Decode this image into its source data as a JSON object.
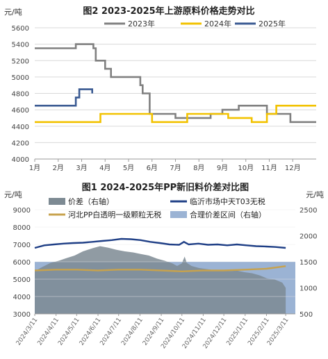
{
  "chart_data": [
    {
      "type": "line",
      "title": "图2 2023-2025年上游原料价格走势对比",
      "ylabel": "元/吨",
      "ylim": [
        4000,
        5600
      ],
      "y_ticks": [
        "4000",
        "4200",
        "4400",
        "4600",
        "4800",
        "5000",
        "5200",
        "5400",
        "5600"
      ],
      "x_ticks": [
        "1月",
        "2月",
        "3月",
        "4月",
        "5月",
        "6月",
        "7月",
        "8月",
        "9月",
        "10月",
        "11月",
        "12月"
      ],
      "xlim": [
        1,
        13
      ],
      "grid": true,
      "legend_position": "top",
      "series": [
        {
          "name": "2023年",
          "color": "#808080",
          "points": [
            [
              1,
              5350
            ],
            [
              2.75,
              5350
            ],
            [
              2.75,
              5400
            ],
            [
              3.5,
              5400
            ],
            [
              3.5,
              5350
            ],
            [
              3.6,
              5350
            ],
            [
              3.6,
              5200
            ],
            [
              4,
              5200
            ],
            [
              4,
              5100
            ],
            [
              4.25,
              5100
            ],
            [
              4.25,
              5000
            ],
            [
              5.5,
              5000
            ],
            [
              5.5,
              4900
            ],
            [
              5.6,
              4900
            ],
            [
              5.6,
              4800
            ],
            [
              5.9,
              4800
            ],
            [
              5.9,
              4550
            ],
            [
              7,
              4550
            ],
            [
              7,
              4500
            ],
            [
              8.5,
              4500
            ],
            [
              8.5,
              4550
            ],
            [
              9,
              4550
            ],
            [
              9,
              4600
            ],
            [
              9.7,
              4600
            ],
            [
              9.7,
              4650
            ],
            [
              10.9,
              4650
            ],
            [
              10.9,
              4550
            ],
            [
              11.9,
              4550
            ],
            [
              11.9,
              4450
            ],
            [
              13,
              4450
            ]
          ]
        },
        {
          "name": "2024年",
          "color": "#f2c200",
          "points": [
            [
              1,
              4450
            ],
            [
              3.8,
              4450
            ],
            [
              3.8,
              4550
            ],
            [
              6,
              4550
            ],
            [
              6,
              4450
            ],
            [
              7.5,
              4450
            ],
            [
              7.5,
              4550
            ],
            [
              9.25,
              4550
            ],
            [
              9.25,
              4500
            ],
            [
              10.25,
              4500
            ],
            [
              10.25,
              4450
            ],
            [
              10.9,
              4450
            ],
            [
              10.9,
              4550
            ],
            [
              11.3,
              4550
            ],
            [
              11.3,
              4650
            ],
            [
              13,
              4650
            ]
          ]
        },
        {
          "name": "2025年",
          "color": "#3a5a92",
          "points": [
            [
              1,
              4650
            ],
            [
              2.75,
              4650
            ],
            [
              2.75,
              4750
            ],
            [
              2.9,
              4750
            ],
            [
              2.9,
              4850
            ],
            [
              3.45,
              4850
            ],
            [
              3.45,
              4800
            ]
          ]
        }
      ]
    },
    {
      "type": "line",
      "title": "图1 2024-2025年PP新旧料价差对比图",
      "ylabel": "元/吨",
      "ylabel_right": "元/吨",
      "ylim": [
        3000,
        9000
      ],
      "ylim_right": [
        500,
        2500
      ],
      "y_ticks": [
        "3000",
        "4000",
        "5000",
        "6000",
        "7000",
        "8000",
        "9000"
      ],
      "y_ticks_right": [
        "500",
        "1000",
        "1500",
        "2000",
        "2500"
      ],
      "x_ticks": [
        "2024/3/11",
        "2024/4/11",
        "2024/5/11",
        "2024/6/11",
        "2024/7/11",
        "2024/8/11",
        "2024/9/11",
        "2024/10/11",
        "2024/11/11",
        "2024/12/11",
        "2025/1/11",
        "2025/2/11",
        "2025/3/11"
      ],
      "legend_position": "top",
      "series": [
        {
          "name": "价差（右轴）",
          "kind": "area",
          "axis": "right",
          "color": "#7d8a93",
          "dates": [
            "2024-03-11",
            "2024-03-22",
            "2024-04-03",
            "2024-04-15",
            "2024-04-26",
            "2024-05-08",
            "2024-05-20",
            "2024-06-03",
            "2024-06-14",
            "2024-06-26",
            "2024-07-08",
            "2024-07-20",
            "2024-08-01",
            "2024-08-12",
            "2024-08-24",
            "2024-09-05",
            "2024-09-16",
            "2024-09-27",
            "2024-10-04",
            "2024-10-11",
            "2024-10-15",
            "2024-10-18",
            "2024-10-25",
            "2024-11-05",
            "2024-11-16",
            "2024-11-27",
            "2024-12-08",
            "2024-12-19",
            "2024-12-30",
            "2025-01-10",
            "2025-01-21",
            "2025-02-01",
            "2025-02-12",
            "2025-02-23",
            "2025-03-06",
            "2025-03-11"
          ],
          "values": [
            1320,
            1400,
            1480,
            1520,
            1570,
            1620,
            1700,
            1760,
            1800,
            1770,
            1730,
            1700,
            1680,
            1650,
            1620,
            1560,
            1520,
            1470,
            1420,
            1470,
            1600,
            1480,
            1420,
            1380,
            1360,
            1340,
            1320,
            1320,
            1330,
            1300,
            1280,
            1240,
            1180,
            1160,
            1100,
            1000
          ]
        },
        {
          "name": "临沂市场中天T03无税",
          "kind": "line",
          "axis": "left",
          "color": "#1f3f86",
          "dates": [
            "2024-03-11",
            "2024-03-25",
            "2024-04-08",
            "2024-04-22",
            "2024-05-06",
            "2024-05-20",
            "2024-06-03",
            "2024-06-17",
            "2024-07-01",
            "2024-07-15",
            "2024-07-29",
            "2024-08-12",
            "2024-08-26",
            "2024-09-09",
            "2024-09-23",
            "2024-10-07",
            "2024-10-14",
            "2024-10-21",
            "2024-11-04",
            "2024-11-18",
            "2024-12-02",
            "2024-12-16",
            "2024-12-30",
            "2025-01-13",
            "2025-01-27",
            "2025-02-10",
            "2025-02-24",
            "2025-03-11"
          ],
          "values": [
            6800,
            6950,
            7000,
            7050,
            7080,
            7100,
            7150,
            7200,
            7250,
            7320,
            7300,
            7250,
            7150,
            7080,
            7000,
            6980,
            7150,
            7000,
            7050,
            6980,
            7000,
            6950,
            7000,
            6950,
            6900,
            6880,
            6850,
            6800
          ]
        },
        {
          "name": "河北PP白透明一级颗粒无税",
          "kind": "line",
          "axis": "left",
          "color": "#c7a24d",
          "dates": [
            "2024-03-11",
            "2024-04-11",
            "2024-05-11",
            "2024-06-11",
            "2024-07-11",
            "2024-08-11",
            "2024-09-11",
            "2024-10-11",
            "2024-11-11",
            "2024-12-11",
            "2025-01-11",
            "2025-02-11",
            "2025-03-11"
          ],
          "values": [
            5500,
            5550,
            5550,
            5500,
            5550,
            5550,
            5500,
            5450,
            5500,
            5500,
            5550,
            5600,
            5750
          ]
        },
        {
          "name": "合理价差区间（右轴）",
          "kind": "band",
          "axis": "right",
          "color": "#9bb3d4",
          "values": [
            500,
            1500
          ]
        }
      ]
    }
  ]
}
